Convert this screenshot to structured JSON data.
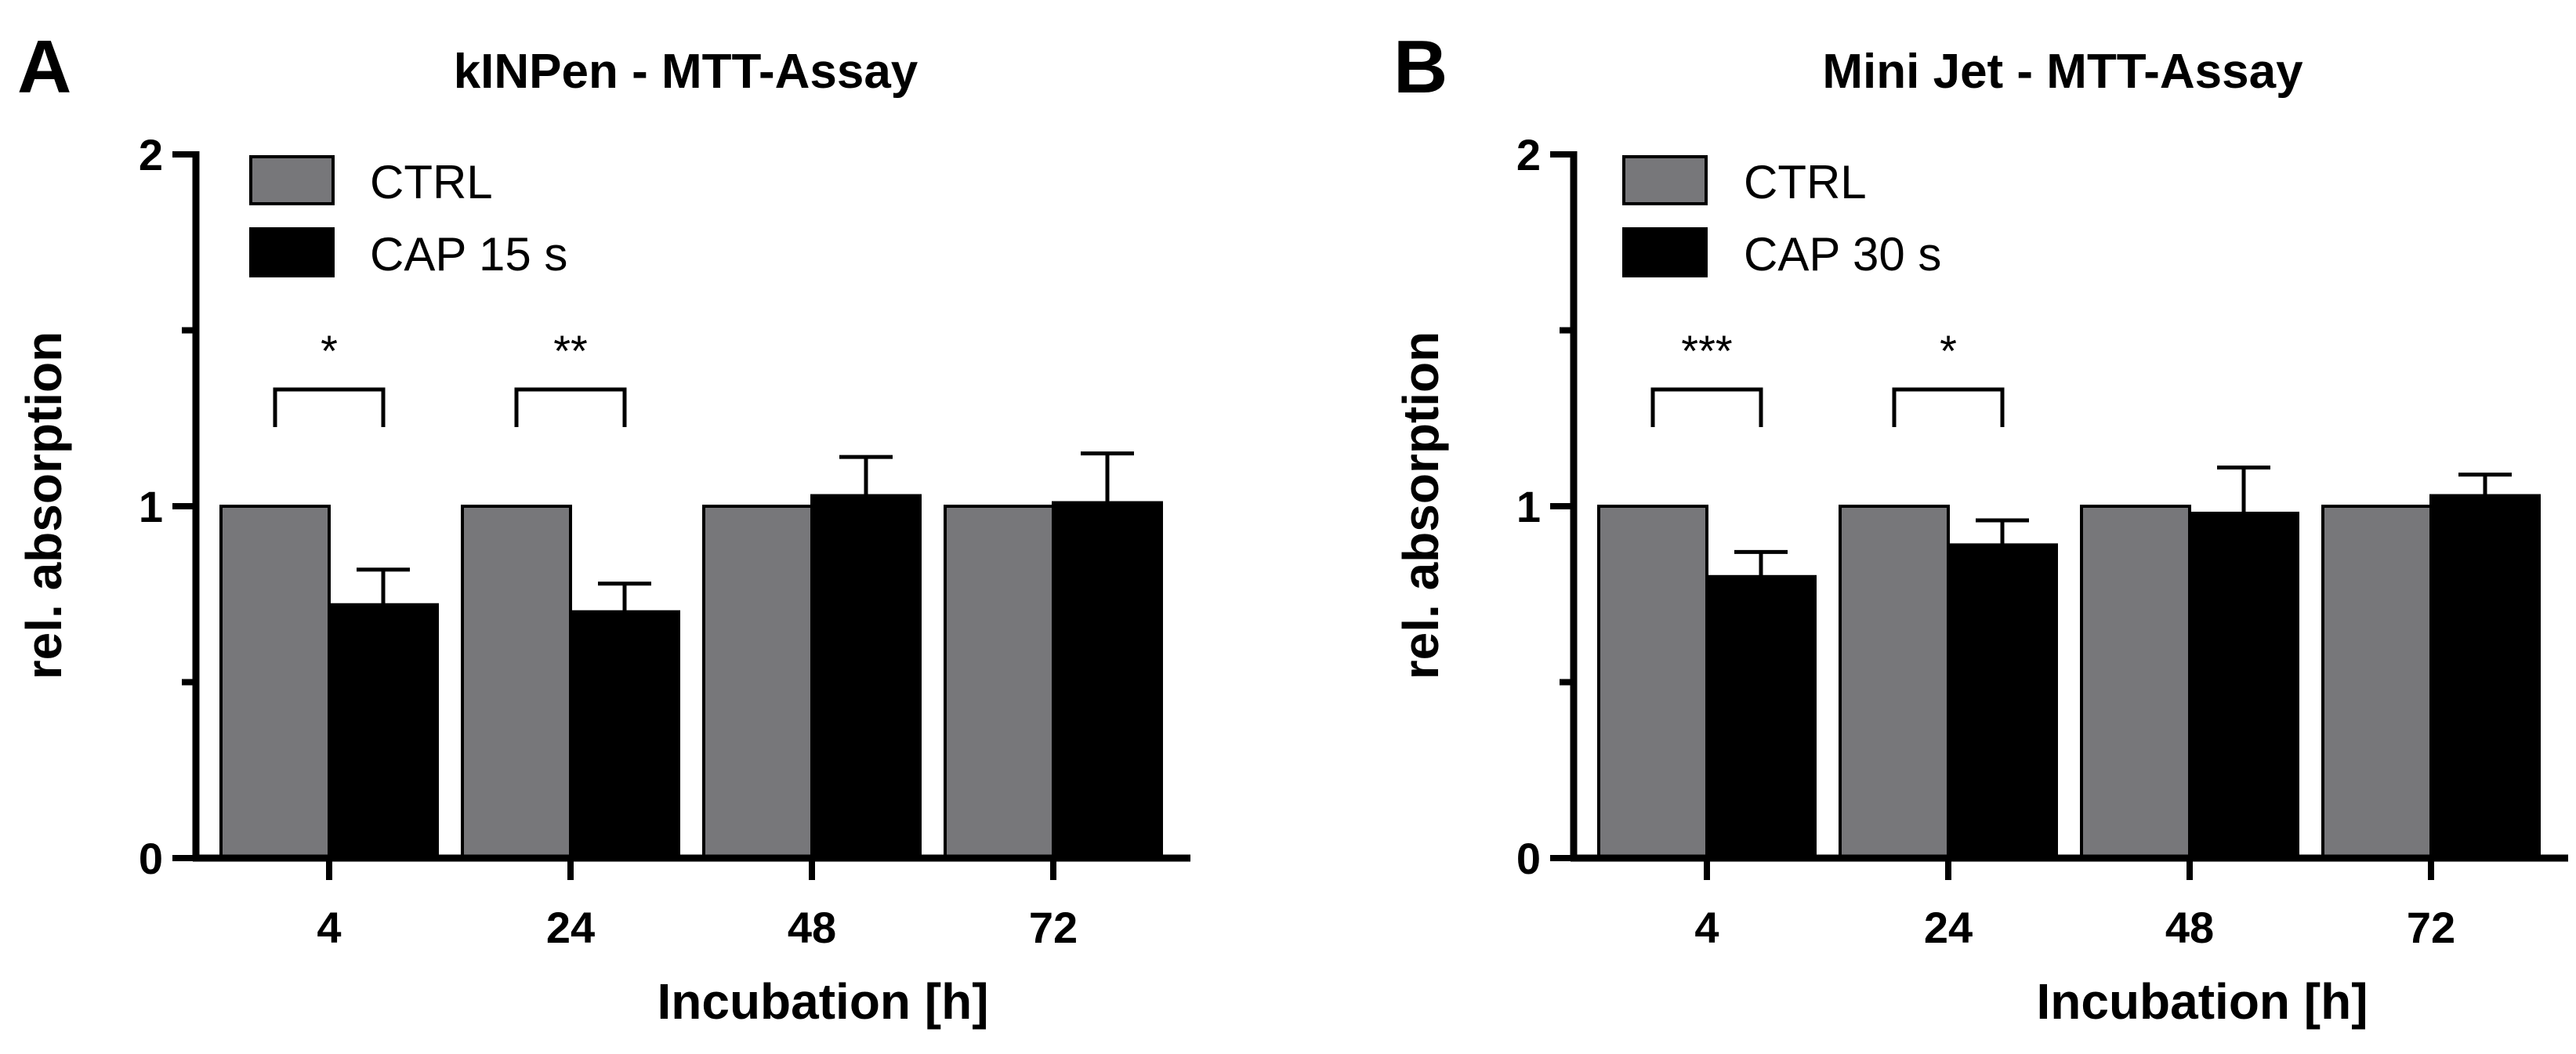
{
  "colors": {
    "ctrl": "#77777a",
    "cap": "#000000",
    "axis": "#000000"
  },
  "chart_data": [
    {
      "type": "bar",
      "panel": "A",
      "title": "kINPen - MTT-Assay",
      "xlabel": "Incubation [h]",
      "ylabel": "rel. absorption",
      "ylim": [
        0,
        2
      ],
      "yticks": [
        0,
        1,
        2
      ],
      "yminor": [
        0.5,
        1.5
      ],
      "categories": [
        "4",
        "24",
        "48",
        "72"
      ],
      "series": [
        {
          "name": "CTRL",
          "values": [
            1.0,
            1.0,
            1.0,
            1.0
          ],
          "errors": [
            0,
            0,
            0,
            0
          ]
        },
        {
          "name": "CAP 15 s",
          "values": [
            0.72,
            0.7,
            1.03,
            1.01
          ],
          "errors": [
            0.1,
            0.08,
            0.11,
            0.14
          ]
        }
      ],
      "significance": [
        {
          "category": "4",
          "label": "*"
        },
        {
          "category": "24",
          "label": "**"
        }
      ]
    },
    {
      "type": "bar",
      "panel": "B",
      "title": "Mini Jet - MTT-Assay",
      "xlabel": "Incubation [h]",
      "ylabel": "rel. absorption",
      "ylim": [
        0,
        2
      ],
      "yticks": [
        0,
        1,
        2
      ],
      "yminor": [
        0.5,
        1.5
      ],
      "categories": [
        "4",
        "24",
        "48",
        "72"
      ],
      "series": [
        {
          "name": "CTRL",
          "values": [
            1.0,
            1.0,
            1.0,
            1.0
          ],
          "errors": [
            0,
            0,
            0,
            0
          ]
        },
        {
          "name": "CAP 30 s",
          "values": [
            0.8,
            0.89,
            0.98,
            1.03
          ],
          "errors": [
            0.07,
            0.07,
            0.13,
            0.06
          ]
        }
      ],
      "significance": [
        {
          "category": "4",
          "label": "***"
        },
        {
          "category": "24",
          "label": "*"
        }
      ]
    }
  ]
}
